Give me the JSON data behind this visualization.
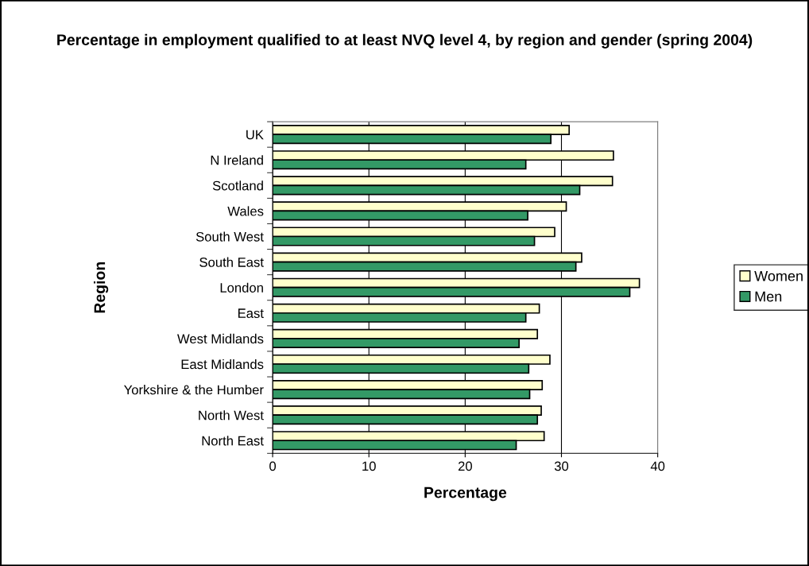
{
  "chart_data": {
    "type": "bar",
    "orientation": "horizontal",
    "title": "Percentage in employment qualified to at least NVQ level 4, by region and gender (spring 2004)",
    "xlabel": "Percentage",
    "ylabel": "Region",
    "categories": [
      "UK",
      "N Ireland",
      "Scotland",
      "Wales",
      "South West",
      "South East",
      "London",
      "East",
      "West Midlands",
      "East Midlands",
      "Yorkshire & the Humber",
      "North West",
      "North East"
    ],
    "series": [
      {
        "name": "Women",
        "color": "#ffffcc",
        "values": [
          30.8,
          35.4,
          35.3,
          30.5,
          29.3,
          32.1,
          38.1,
          27.7,
          27.5,
          28.8,
          28.0,
          27.9,
          28.2
        ]
      },
      {
        "name": "Men",
        "color": "#339966",
        "values": [
          28.9,
          26.3,
          31.9,
          26.5,
          27.2,
          31.5,
          37.1,
          26.3,
          25.6,
          26.6,
          26.7,
          27.5,
          25.3
        ]
      }
    ],
    "xlim": [
      0,
      40
    ],
    "xticks": [
      0,
      10,
      20,
      30,
      40
    ],
    "grid": "x",
    "legend": "right"
  }
}
